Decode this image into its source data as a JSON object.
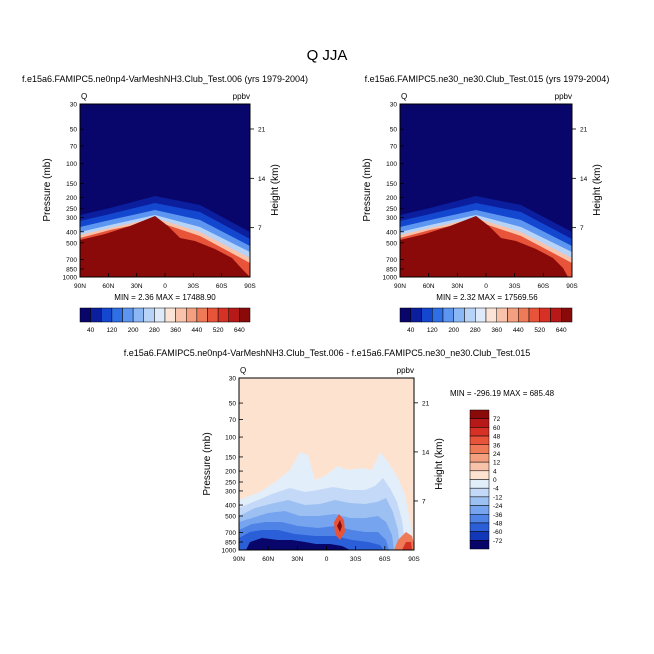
{
  "figure_title": "Q JJA",
  "chart_data": [
    {
      "type": "heatmap",
      "id": "panel1",
      "title": "f.e15a6.FAMIPC5.ne0np4-VarMeshNH3.Club_Test.006 (yrs 1979-2004)",
      "variable": "Q",
      "units": "ppbv",
      "ylabel": "Pressure (mb)",
      "ylabel_right": "Height (km)",
      "x_ticks": [
        "90N",
        "60N",
        "30N",
        "0",
        "30S",
        "60S",
        "90S"
      ],
      "y_ticks": [
        "30",
        "50",
        "70",
        "100",
        "150",
        "200",
        "250",
        "300",
        "400",
        "500",
        "700",
        "850",
        "1000"
      ],
      "right_ticks": [
        "21",
        "14",
        "7"
      ],
      "ylim": [
        1000,
        30
      ],
      "stats": "MIN =   2.36   MAX = 17488.90",
      "colorbar_labels": [
        "40",
        "120",
        "200",
        "280",
        "360",
        "440",
        "520",
        "640"
      ],
      "colorbar_colors": [
        "#08066a",
        "#0a1e9e",
        "#1447cf",
        "#2f6fe6",
        "#5c96f0",
        "#8cb7f5",
        "#b8d3f8",
        "#deeaf9",
        "#fbe4d6",
        "#f8c3aa",
        "#f4a080",
        "#ef7a57",
        "#e8543a",
        "#d53125",
        "#b71818",
        "#8a0a0a"
      ]
    },
    {
      "type": "heatmap",
      "id": "panel2",
      "title": "f.e15a6.FAMIPC5.ne30_ne30.Club_Test.015 (yrs 1979-2004)",
      "variable": "Q",
      "units": "ppbv",
      "ylabel": "Pressure (mb)",
      "ylabel_right": "Height (km)",
      "x_ticks": [
        "90N",
        "60N",
        "30N",
        "0",
        "30S",
        "60S",
        "90S"
      ],
      "y_ticks": [
        "30",
        "50",
        "70",
        "100",
        "150",
        "200",
        "250",
        "300",
        "400",
        "500",
        "700",
        "850",
        "1000"
      ],
      "right_ticks": [
        "21",
        "14",
        "7"
      ],
      "ylim": [
        1000,
        30
      ],
      "stats": "MIN =   2.32   MAX = 17569.56",
      "colorbar_labels": [
        "40",
        "120",
        "200",
        "280",
        "360",
        "440",
        "520",
        "640"
      ],
      "colorbar_colors": [
        "#08066a",
        "#0a1e9e",
        "#1447cf",
        "#2f6fe6",
        "#5c96f0",
        "#8cb7f5",
        "#b8d3f8",
        "#deeaf9",
        "#fbe4d6",
        "#f8c3aa",
        "#f4a080",
        "#ef7a57",
        "#e8543a",
        "#d53125",
        "#b71818",
        "#8a0a0a"
      ]
    },
    {
      "type": "heatmap",
      "id": "panel3",
      "title": "f.e15a6.FAMIPC5.ne0np4-VarMeshNH3.Club_Test.006 - f.e15a6.FAMIPC5.ne30_ne30.Club_Test.015",
      "variable": "Q",
      "units": "ppbv",
      "ylabel": "Pressure (mb)",
      "ylabel_right": "Height (km)",
      "x_ticks": [
        "90N",
        "60N",
        "30N",
        "0",
        "30S",
        "60S",
        "90S"
      ],
      "y_ticks": [
        "30",
        "50",
        "70",
        "100",
        "150",
        "200",
        "250",
        "300",
        "400",
        "500",
        "700",
        "850",
        "1000"
      ],
      "right_ticks": [
        "21",
        "14",
        "7"
      ],
      "ylim": [
        1000,
        30
      ],
      "stats": "MIN = -296.19  MAX = 685.48",
      "colorbar_labels": [
        "72",
        "60",
        "48",
        "36",
        "24",
        "12",
        "4",
        "0",
        "-4",
        "-12",
        "-24",
        "-36",
        "-48",
        "-60",
        "-72"
      ],
      "colorbar_colors": [
        "#8a0a0a",
        "#b71818",
        "#d53125",
        "#e8543a",
        "#ef7a57",
        "#f4a080",
        "#f8c3aa",
        "#fde3cf",
        "#e3eefb",
        "#c3d9f7",
        "#9dc0f3",
        "#77a4ee",
        "#4f83e6",
        "#2a5fd8",
        "#1238b8",
        "#08066a"
      ]
    }
  ]
}
